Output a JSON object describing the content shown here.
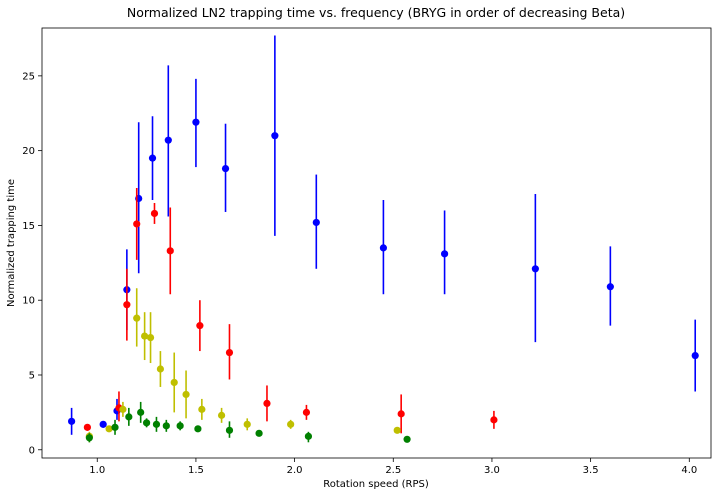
{
  "chart_data": {
    "type": "scatter",
    "title": "Normalized LN2 trapping time vs. frequency (BRYG in order of decreasing Beta)",
    "xlabel": "Rotation speed (RPS)",
    "ylabel": "Normalized trapping time",
    "xlim": [
      0.72,
      4.11
    ],
    "ylim": [
      -0.55,
      28.2
    ],
    "xticks": [
      1.0,
      1.5,
      2.0,
      2.5,
      3.0,
      3.5,
      4.0
    ],
    "xtick_labels": [
      "1.0",
      "1.5",
      "2.0",
      "2.5",
      "3.0",
      "3.5",
      "4.0"
    ],
    "yticks": [
      0,
      5,
      10,
      15,
      20,
      25
    ],
    "ytick_labels": [
      "0",
      "5",
      "10",
      "15",
      "20",
      "25"
    ],
    "grid": false,
    "legend": "none",
    "series": [
      {
        "color": "#0000ff",
        "points": [
          {
            "x": 0.87,
            "y": 1.9,
            "lo": 1.0,
            "hi": 2.8
          },
          {
            "x": 1.03,
            "y": 1.7,
            "lo": 1.5,
            "hi": 1.9
          },
          {
            "x": 1.1,
            "y": 2.6,
            "lo": 2.0,
            "hi": 3.4
          },
          {
            "x": 1.15,
            "y": 10.7,
            "lo": 8.0,
            "hi": 13.4
          },
          {
            "x": 1.21,
            "y": 16.8,
            "lo": 11.8,
            "hi": 21.9
          },
          {
            "x": 1.28,
            "y": 19.5,
            "lo": 16.7,
            "hi": 22.3
          },
          {
            "x": 1.36,
            "y": 20.7,
            "lo": 15.6,
            "hi": 25.7
          },
          {
            "x": 1.5,
            "y": 21.9,
            "lo": 18.9,
            "hi": 24.8
          },
          {
            "x": 1.65,
            "y": 18.8,
            "lo": 15.9,
            "hi": 21.8
          },
          {
            "x": 1.9,
            "y": 21.0,
            "lo": 14.3,
            "hi": 27.7
          },
          {
            "x": 2.11,
            "y": 15.2,
            "lo": 12.1,
            "hi": 18.4
          },
          {
            "x": 2.45,
            "y": 13.5,
            "lo": 10.4,
            "hi": 16.7
          },
          {
            "x": 2.76,
            "y": 13.1,
            "lo": 10.4,
            "hi": 16.0
          },
          {
            "x": 3.22,
            "y": 12.1,
            "lo": 7.2,
            "hi": 17.1
          },
          {
            "x": 3.6,
            "y": 10.9,
            "lo": 8.3,
            "hi": 13.6
          },
          {
            "x": 4.03,
            "y": 6.3,
            "lo": 3.9,
            "hi": 8.7
          }
        ]
      },
      {
        "color": "#ff0000",
        "points": [
          {
            "x": 0.95,
            "y": 1.5,
            "lo": 1.5,
            "hi": 1.5
          },
          {
            "x": 1.11,
            "y": 2.8,
            "lo": 1.9,
            "hi": 3.9
          },
          {
            "x": 1.15,
            "y": 9.7,
            "lo": 7.3,
            "hi": 12.1
          },
          {
            "x": 1.2,
            "y": 15.1,
            "lo": 12.7,
            "hi": 17.5
          },
          {
            "x": 1.29,
            "y": 15.8,
            "lo": 15.1,
            "hi": 16.5
          },
          {
            "x": 1.37,
            "y": 13.3,
            "lo": 10.4,
            "hi": 16.2
          },
          {
            "x": 1.52,
            "y": 8.3,
            "lo": 6.6,
            "hi": 10.0
          },
          {
            "x": 1.67,
            "y": 6.5,
            "lo": 4.7,
            "hi": 8.4
          },
          {
            "x": 1.86,
            "y": 3.1,
            "lo": 1.9,
            "hi": 4.3
          },
          {
            "x": 2.06,
            "y": 2.5,
            "lo": 2.0,
            "hi": 3.0
          },
          {
            "x": 2.54,
            "y": 2.4,
            "lo": 1.1,
            "hi": 3.7
          },
          {
            "x": 3.01,
            "y": 2.0,
            "lo": 1.4,
            "hi": 2.6
          }
        ]
      },
      {
        "color": "#bfbf00",
        "points": [
          {
            "x": 0.96,
            "y": 0.9,
            "lo": 0.5,
            "hi": 1.2
          },
          {
            "x": 1.06,
            "y": 1.4,
            "lo": 1.2,
            "hi": 1.6
          },
          {
            "x": 1.13,
            "y": 2.7,
            "lo": 2.2,
            "hi": 3.2
          },
          {
            "x": 1.2,
            "y": 8.8,
            "lo": 6.9,
            "hi": 10.8
          },
          {
            "x": 1.24,
            "y": 7.6,
            "lo": 6.0,
            "hi": 9.2
          },
          {
            "x": 1.27,
            "y": 7.5,
            "lo": 5.8,
            "hi": 9.2
          },
          {
            "x": 1.32,
            "y": 5.4,
            "lo": 4.2,
            "hi": 6.6
          },
          {
            "x": 1.39,
            "y": 4.5,
            "lo": 2.5,
            "hi": 6.5
          },
          {
            "x": 1.45,
            "y": 3.7,
            "lo": 2.1,
            "hi": 5.3
          },
          {
            "x": 1.53,
            "y": 2.7,
            "lo": 2.0,
            "hi": 3.4
          },
          {
            "x": 1.63,
            "y": 2.3,
            "lo": 1.8,
            "hi": 2.8
          },
          {
            "x": 1.76,
            "y": 1.7,
            "lo": 1.3,
            "hi": 2.1
          },
          {
            "x": 1.98,
            "y": 1.7,
            "lo": 1.4,
            "hi": 2.0
          },
          {
            "x": 2.52,
            "y": 1.3,
            "lo": 1.2,
            "hi": 1.4
          }
        ]
      },
      {
        "color": "#008000",
        "points": [
          {
            "x": 0.96,
            "y": 0.8,
            "lo": 0.5,
            "hi": 1.1
          },
          {
            "x": 1.09,
            "y": 1.5,
            "lo": 1.0,
            "hi": 2.0
          },
          {
            "x": 1.16,
            "y": 2.2,
            "lo": 1.6,
            "hi": 2.8
          },
          {
            "x": 1.22,
            "y": 2.5,
            "lo": 1.8,
            "hi": 3.2
          },
          {
            "x": 1.25,
            "y": 1.8,
            "lo": 1.5,
            "hi": 2.1
          },
          {
            "x": 1.3,
            "y": 1.7,
            "lo": 1.2,
            "hi": 2.2
          },
          {
            "x": 1.35,
            "y": 1.6,
            "lo": 1.2,
            "hi": 2.0
          },
          {
            "x": 1.42,
            "y": 1.6,
            "lo": 1.3,
            "hi": 1.9
          },
          {
            "x": 1.51,
            "y": 1.4,
            "lo": 1.3,
            "hi": 1.5
          },
          {
            "x": 1.67,
            "y": 1.3,
            "lo": 0.8,
            "hi": 1.9
          },
          {
            "x": 1.82,
            "y": 1.1,
            "lo": 0.9,
            "hi": 1.3
          },
          {
            "x": 2.07,
            "y": 0.9,
            "lo": 0.5,
            "hi": 1.2
          },
          {
            "x": 2.57,
            "y": 0.7,
            "lo": 0.6,
            "hi": 0.8
          }
        ]
      }
    ]
  }
}
